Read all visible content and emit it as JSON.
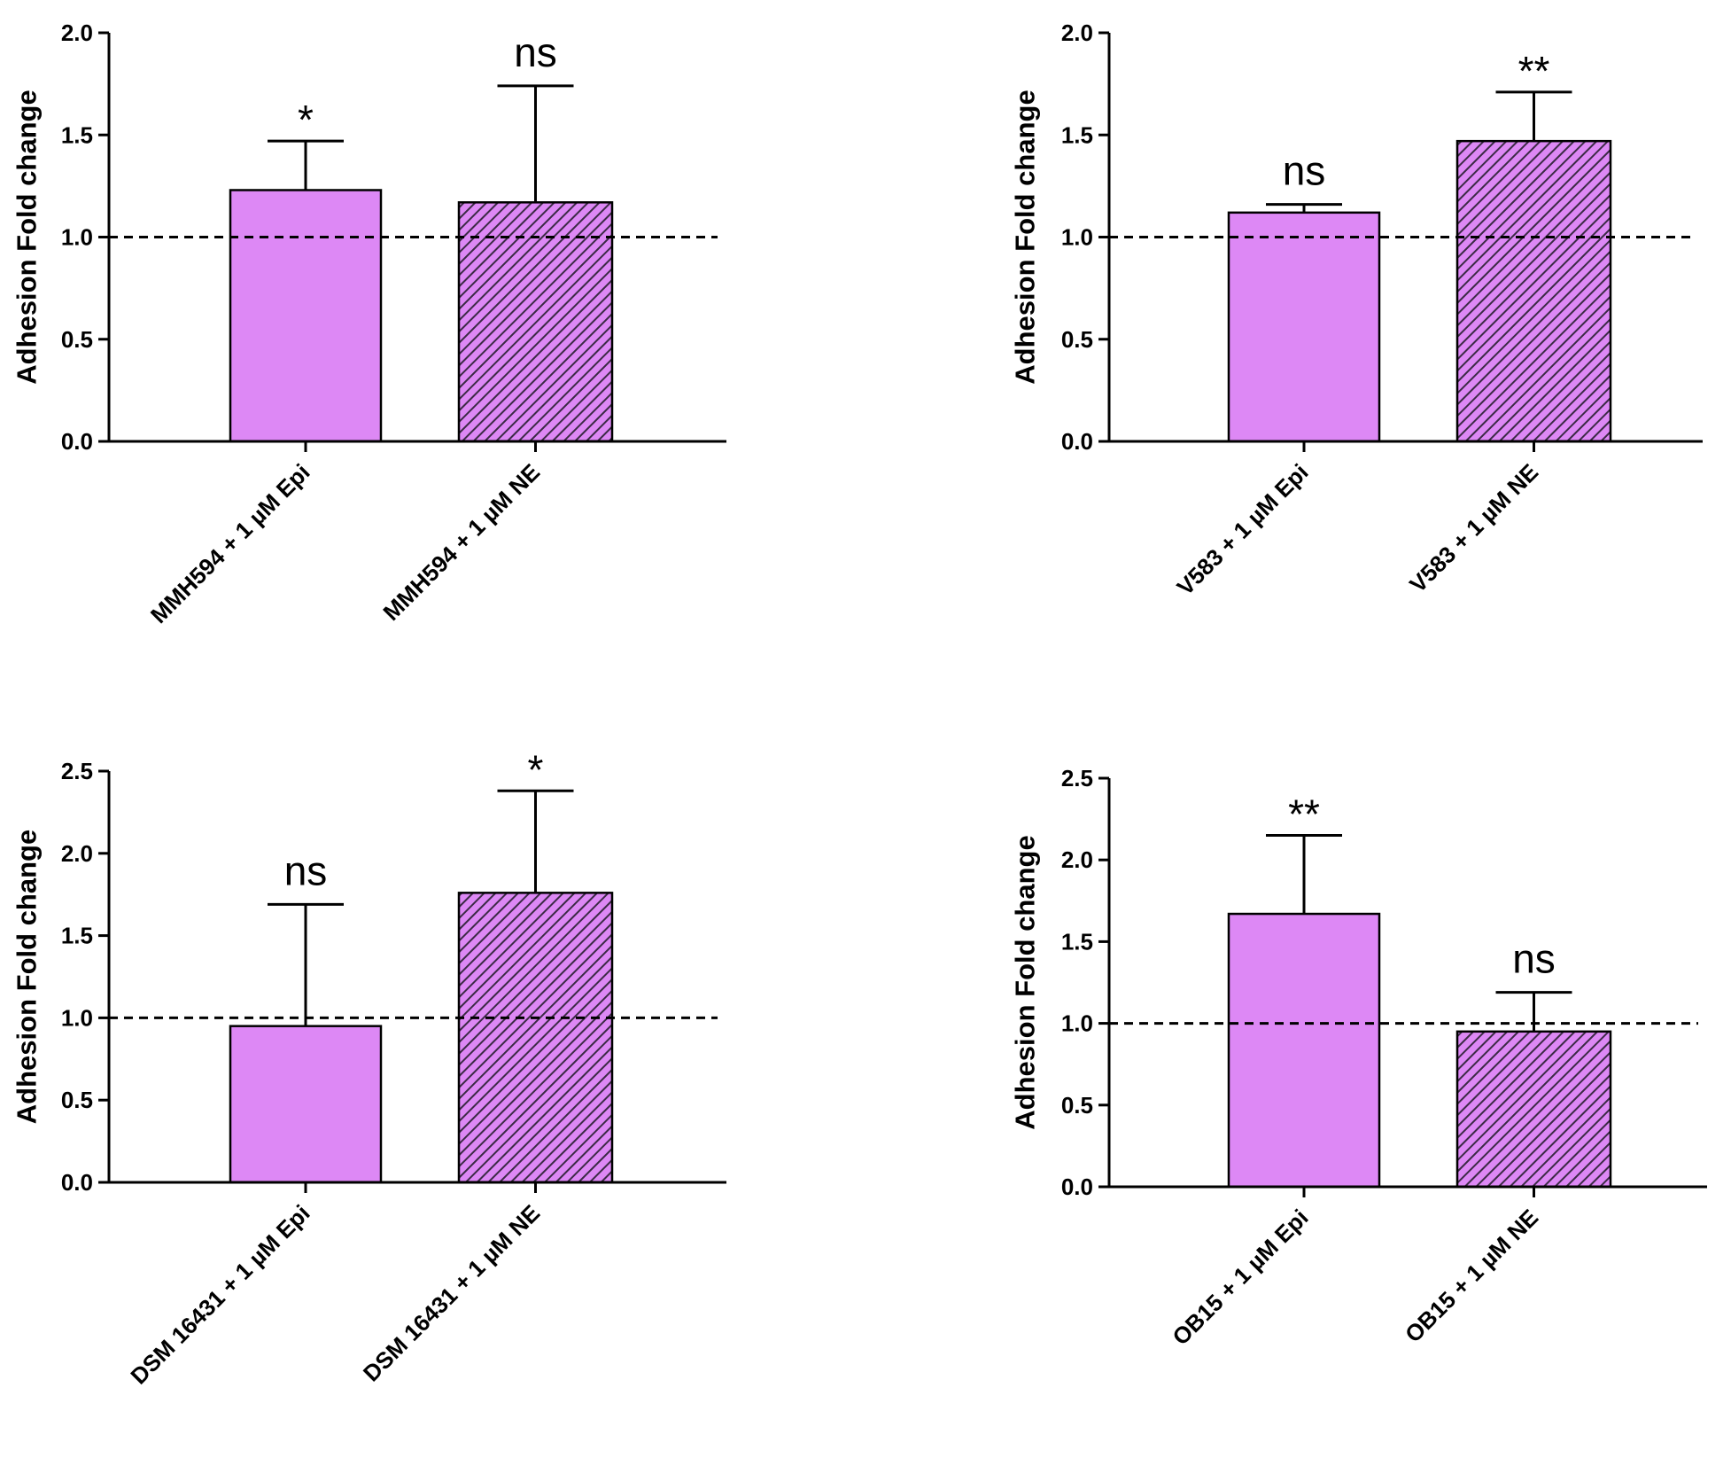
{
  "colors": {
    "bar_fill": "#dd88f5",
    "bar_stroke": "#000000",
    "hatch": "#3b2a45",
    "axis": "#000000"
  },
  "chart_data": [
    {
      "type": "bar",
      "position": "top-left",
      "title": "",
      "ylabel": "Adhesion Fold change",
      "ylim": [
        0,
        2.0
      ],
      "yticks": [
        "0.0",
        "0.5",
        "1.0",
        "1.5",
        "2.0"
      ],
      "reference_line": 1.0,
      "categories": [
        "MMH594 + 1 µM Epi",
        "MMH594 + 1 µM NE"
      ],
      "values": [
        1.23,
        1.17
      ],
      "errors": [
        0.24,
        0.57
      ],
      "patterns": [
        "solid",
        "hatched"
      ],
      "significance": [
        "*",
        "ns"
      ]
    },
    {
      "type": "bar",
      "position": "top-right",
      "title": "",
      "ylabel": "Adhesion Fold change",
      "ylim": [
        0,
        2.0
      ],
      "yticks": [
        "0.0",
        "0.5",
        "1.0",
        "1.5",
        "2.0"
      ],
      "reference_line": 1.0,
      "categories": [
        "V583 + 1 µM Epi",
        "V583 + 1 µM NE"
      ],
      "values": [
        1.12,
        1.47
      ],
      "errors": [
        0.04,
        0.24
      ],
      "patterns": [
        "solid",
        "hatched"
      ],
      "significance": [
        "ns",
        "**"
      ]
    },
    {
      "type": "bar",
      "position": "bottom-left",
      "title": "",
      "ylabel": "Adhesion Fold change",
      "ylim": [
        0,
        2.5
      ],
      "yticks": [
        "0.0",
        "0.5",
        "1.0",
        "1.5",
        "2.0",
        "2.5"
      ],
      "reference_line": 1.0,
      "categories": [
        "DSM 16431 + 1 µM Epi",
        "DSM 16431 + 1 µM NE"
      ],
      "values": [
        0.95,
        1.76
      ],
      "errors": [
        0.74,
        0.62
      ],
      "patterns": [
        "solid",
        "hatched"
      ],
      "significance": [
        "ns",
        "*"
      ]
    },
    {
      "type": "bar",
      "position": "bottom-right",
      "title": "",
      "ylabel": "Adhesion Fold change",
      "ylim": [
        0,
        2.5
      ],
      "yticks": [
        "0.0",
        "0.5",
        "1.0",
        "1.5",
        "2.0",
        "2.5"
      ],
      "reference_line": 1.0,
      "categories": [
        "OB15 + 1 µM Epi",
        "OB15 + 1 µM NE"
      ],
      "values": [
        1.67,
        0.95
      ],
      "errors": [
        0.48,
        0.24
      ],
      "patterns": [
        "solid",
        "hatched"
      ],
      "significance": [
        "**",
        "ns"
      ]
    }
  ]
}
